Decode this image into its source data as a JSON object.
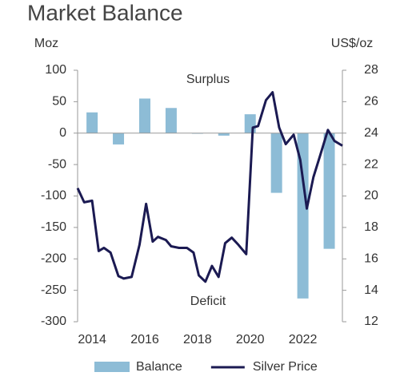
{
  "chart_data": {
    "type": "combo",
    "title": "Market Balance",
    "y_label": "Moz",
    "y2_label": "US$/oz",
    "annotations": [
      "Surplus",
      "Deficit"
    ],
    "xlim": [
      2013.45,
      2023.5
    ],
    "xticks": [
      2014,
      2016,
      2018,
      2020,
      2022
    ],
    "ylim": [
      -300,
      100
    ],
    "yticks": [
      100,
      50,
      0,
      -50,
      -100,
      -150,
      -200,
      -250,
      -300
    ],
    "y2lim": [
      12,
      28
    ],
    "y2ticks": [
      28,
      26,
      24,
      22,
      20,
      18,
      16,
      14,
      12
    ],
    "legend": "bottom",
    "series": [
      {
        "name": "Balance",
        "type": "bar",
        "color": "#8dbcd6",
        "x": [
          2014,
          2015,
          2016,
          2017,
          2018,
          2019,
          2020,
          2021,
          2022,
          2023
        ],
        "values": [
          33,
          -18,
          55,
          40,
          -1,
          -4,
          30,
          -95,
          -263,
          -184
        ]
      },
      {
        "name": "Silver Price",
        "type": "line",
        "axis": "y2",
        "color": "#1b1a52",
        "x": [
          2013.45,
          2013.7,
          2014.0,
          2014.25,
          2014.45,
          2014.7,
          2015.0,
          2015.2,
          2015.5,
          2015.8,
          2016.05,
          2016.3,
          2016.5,
          2016.8,
          2017.0,
          2017.3,
          2017.6,
          2017.85,
          2018.05,
          2018.3,
          2018.55,
          2018.8,
          2019.05,
          2019.3,
          2019.55,
          2019.85,
          2020.1,
          2020.3,
          2020.6,
          2020.85,
          2021.1,
          2021.35,
          2021.65,
          2021.9,
          2022.15,
          2022.4,
          2022.65,
          2022.95,
          2023.2,
          2023.5
        ],
        "values": [
          20.5,
          19.6,
          19.7,
          16.5,
          16.7,
          16.4,
          14.9,
          14.75,
          14.85,
          16.9,
          19.5,
          17.1,
          17.4,
          17.2,
          16.8,
          16.7,
          16.7,
          16.4,
          14.95,
          14.55,
          15.55,
          14.85,
          17.0,
          17.35,
          16.9,
          16.3,
          24.35,
          24.45,
          26.1,
          26.6,
          24.35,
          23.3,
          23.9,
          22.3,
          19.2,
          21.2,
          22.55,
          24.2,
          23.5,
          23.2
        ]
      }
    ]
  }
}
